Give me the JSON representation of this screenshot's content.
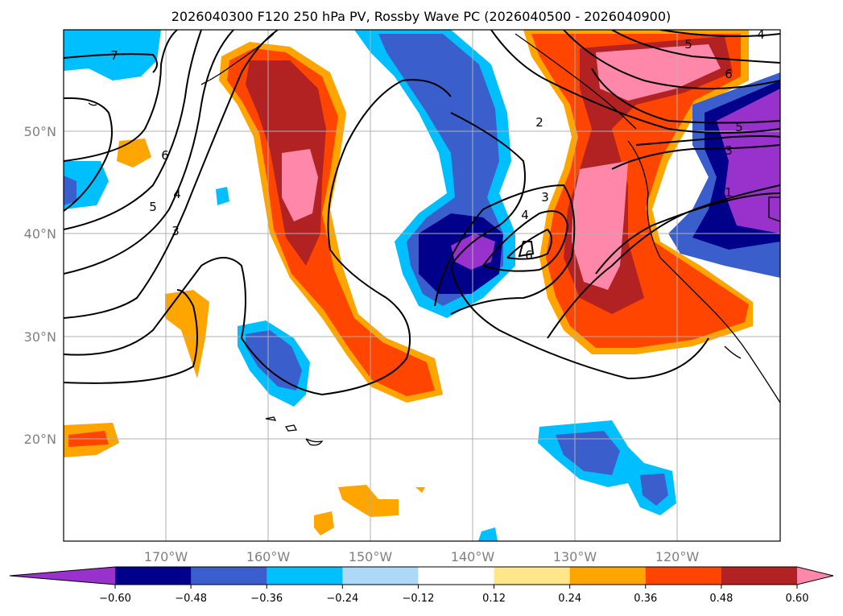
{
  "title": "2026040300 F120 250 hPa PV, Rossby Wave PC (2026040500 - 2026040900)",
  "lat_labels": [
    "50°N",
    "40°N",
    "30°N",
    "20°N"
  ],
  "lon_labels": [
    "170°W",
    "160°W",
    "150°W",
    "140°W",
    "130°W",
    "120°W"
  ],
  "colorbar": {
    "colors": [
      "#9932cc",
      "#00008b",
      "#3a5fcd",
      "#00bfff",
      "#add8f8",
      "#ffffff",
      "#ffe68a",
      "#ffa500",
      "#ff4500",
      "#b22222",
      "#ff88aa"
    ],
    "tick_labels": [
      "−0.60",
      "−0.48",
      "−0.36",
      "−0.24",
      "−0.12",
      "0.12",
      "0.24",
      "0.36",
      "0.48",
      "0.60"
    ]
  },
  "contour_labels": [
    "7",
    "6",
    "5",
    "4",
    "3",
    "2",
    "3",
    "4",
    "6",
    "5",
    "6",
    "5",
    "4",
    "3",
    "1"
  ],
  "map_colors": {
    "border": "#000000",
    "grid": "#b0b0b0",
    "contour": "#000000"
  }
}
